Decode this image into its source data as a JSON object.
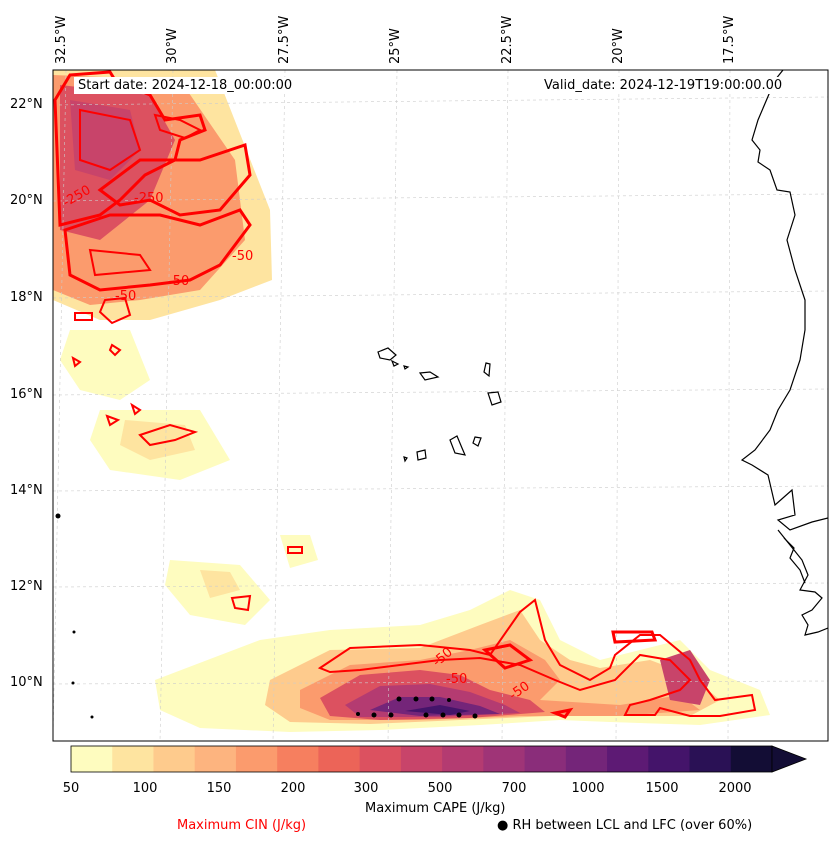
{
  "header": {
    "start_date": "Start date: 2024-12-18_00:00:00",
    "valid_date": "Valid_date: 2024-12-19T19:00:00.00"
  },
  "axes": {
    "longitudes": [
      "32.5°W",
      "30°W",
      "27.5°W",
      "25°W",
      "22.5°W",
      "20°W",
      "17.5°W"
    ],
    "latitudes": [
      "22°N",
      "20°N",
      "18°N",
      "16°N",
      "14°N",
      "12°N",
      "10°N"
    ]
  },
  "colorbar": {
    "label": "Maximum CAPE (J/kg)",
    "ticks": [
      "50",
      "100",
      "150",
      "200",
      "300",
      "500",
      "700",
      "1000",
      "1500",
      "2000"
    ],
    "colors": [
      "#fefcbf",
      "#fee4a0",
      "#fecb8d",
      "#fdb47f",
      "#fb9b6d",
      "#f67f5f",
      "#ec6458",
      "#dc5160",
      "#c8446a",
      "#b43b71",
      "#9f3477",
      "#8a2d7a",
      "#742579",
      "#5d1a74",
      "#44146a",
      "#2a1155",
      "#130d35"
    ]
  },
  "legend": {
    "cin_label": "Maximum CIN (J/kg)",
    "cin_color": "#ff0000",
    "rh_label": "RH between LCL and LFC (over 60%)"
  },
  "contour_labels": [
    "-250",
    "-250",
    "-50",
    "-50",
    "-50",
    "-50",
    "-50",
    "-50"
  ]
}
